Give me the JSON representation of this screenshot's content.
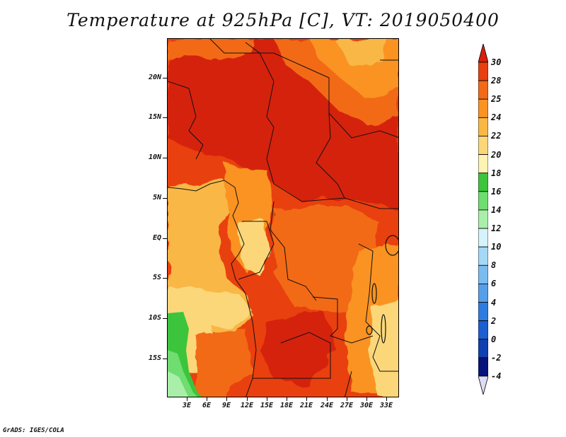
{
  "title": "Temperature at 925hPa [C], VT: 2019050400",
  "footer": "GrADS: IGES/COLA",
  "map": {
    "region": "Central Africa",
    "lat_labels": [
      "20N",
      "15N",
      "10N",
      "5N",
      "EQ",
      "5S",
      "10S",
      "15S"
    ],
    "lon_labels": [
      "3E",
      "6E",
      "9E",
      "12E",
      "15E",
      "18E",
      "21E",
      "24E",
      "27E",
      "30E",
      "33E"
    ]
  },
  "colorbar": {
    "labels": [
      "30",
      "28",
      "25",
      "24",
      "22",
      "20",
      "18",
      "16",
      "14",
      "12",
      "10",
      "8",
      "6",
      "4",
      "2",
      "0",
      "-2",
      "-4"
    ],
    "colors": [
      "#d52108",
      "#e9400f",
      "#f26a18",
      "#fa9322",
      "#f9b744",
      "#fbd77a",
      "#fef3b3",
      "#3cc53c",
      "#6fdd6f",
      "#a9efa9",
      "#d5f3fb",
      "#a5d8f6",
      "#7bbcf0",
      "#549fe8",
      "#2e7ce0",
      "#1b5fd0",
      "#0f3fb0",
      "#07137a",
      "#dcdcf5"
    ]
  }
}
